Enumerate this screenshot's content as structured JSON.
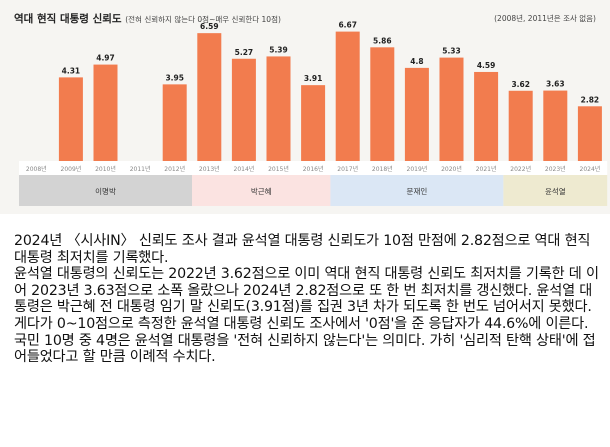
{
  "chart_data": {
    "type": "bar",
    "title": "역대 현직 대통령 신뢰도",
    "subtitle": "(전혀 신뢰하지 않는다 0점~매우 신뢰한다 10점)",
    "note": "(2008년, 2011년은 조사 없음)",
    "categories": [
      "2008년",
      "2009년",
      "2010년",
      "2011년",
      "2012년",
      "2013년",
      "2014년",
      "2015년",
      "2016년",
      "2017년",
      "2018년",
      "2019년",
      "2020년",
      "2021년",
      "2022년",
      "2023년",
      "2024년"
    ],
    "values": [
      null,
      4.31,
      4.97,
      null,
      3.95,
      6.59,
      5.27,
      5.39,
      3.91,
      6.67,
      5.86,
      4.8,
      5.33,
      4.59,
      3.62,
      3.63,
      2.82
    ],
    "value_labels": [
      "",
      "4.31",
      "4.97",
      "",
      "3.95",
      "6.59",
      "5.27",
      "5.39",
      "3.91",
      "6.67",
      "5.86",
      "4.8",
      "5.33",
      "4.59",
      "3.62",
      "3.63",
      "2.82"
    ],
    "ylim": [
      0,
      7
    ],
    "grid": false,
    "bar_color": "#f27c4e",
    "groups": [
      {
        "name": "이명박",
        "from": 0,
        "to": 4,
        "color": "#d3d3d3"
      },
      {
        "name": "박근혜",
        "from": 5,
        "to": 8,
        "color": "#fbe3e1"
      },
      {
        "name": "문재인",
        "from": 9,
        "to": 13,
        "color": "#dbe7f5"
      },
      {
        "name": "윤석열",
        "from": 14,
        "to": 16,
        "color": "#eeead0"
      }
    ]
  },
  "article": {
    "paragraphs": [
      "2024년 〈시사IN〉 신뢰도 조사 결과 윤석열 대통령 신뢰도가 10점 만점에 2.82점으로 역대 현직 대통령 최저치를 기록했다.",
      "윤석열 대통령의 신뢰도는 2022년 3.62점으로 이미 역대 현직 대통령 신뢰도 최저치를 기록한 데 이어 2023년 3.63점으로 소폭 올랐으나 2024년 2.82점으로 또 한 번 최저치를 갱신했다. 윤석열 대통령은 박근혜 전 대통령 임기 말 신뢰도(3.91점)를 집권 3년 차가 되도록 한 번도 넘어서지 못했다.",
      "게다가 0~10점으로 측정한 윤석열 대통령 신뢰도 조사에서 '0점'을 준 응답자가 44.6%에 이른다. 국민 10명 중 4명은 윤석열 대통령을 '전혀 신뢰하지 않는다'는 의미다. 가히 '심리적 탄핵 상태'에 접어들었다고 할 만큼 이례적 수치다."
    ]
  }
}
